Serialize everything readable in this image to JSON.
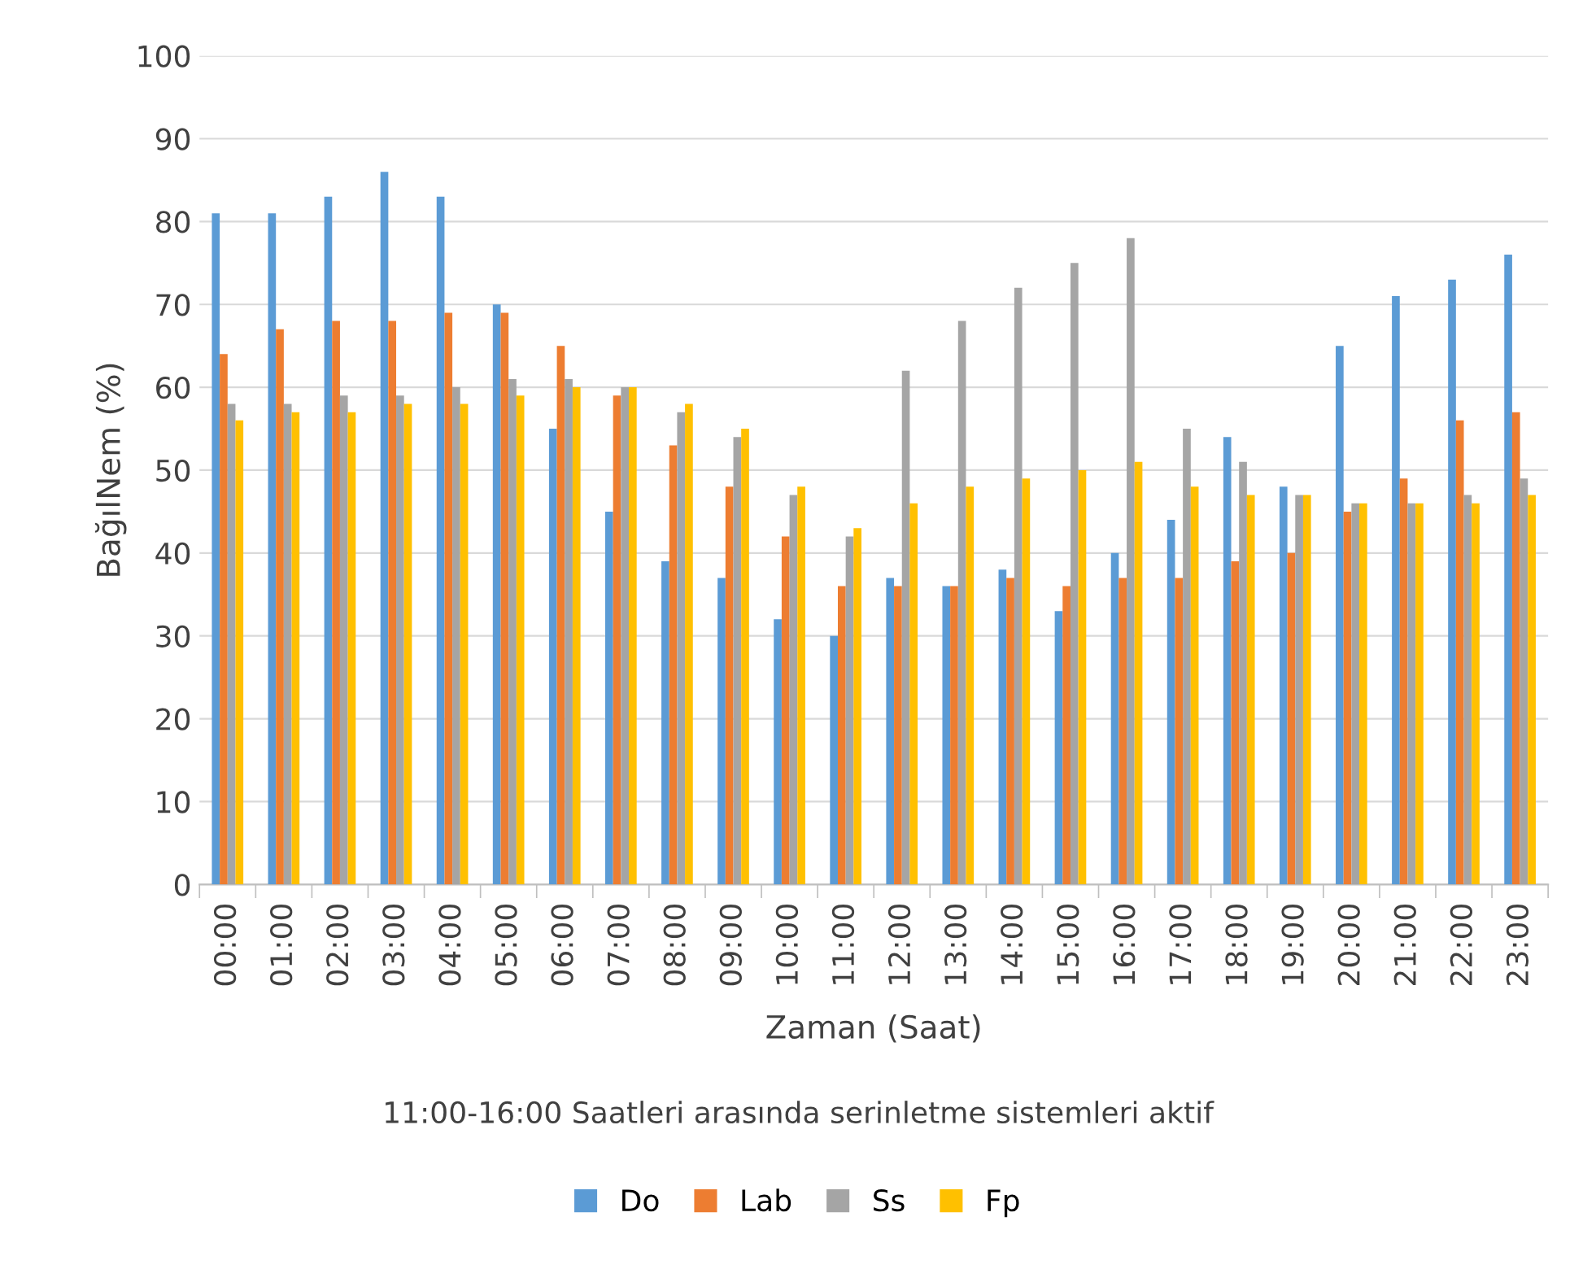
{
  "chart_data": {
    "type": "bar",
    "xlabel": "Zaman (Saat)",
    "ylabel": "BağılNem (%)",
    "annotations": [
      "11:00-16:00 Saatleri arasında serinletme sistemleri aktif"
    ],
    "categories": [
      "00:00",
      "01:00",
      "02:00",
      "03:00",
      "04:00",
      "05:00",
      "06:00",
      "07:00",
      "08:00",
      "09:00",
      "10:00",
      "11:00",
      "12:00",
      "13:00",
      "14:00",
      "15:00",
      "16:00",
      "17:00",
      "18:00",
      "19:00",
      "20:00",
      "21:00",
      "22:00",
      "23:00"
    ],
    "series": [
      {
        "name": "Do",
        "color": "#5b9bd5",
        "values": [
          81,
          81,
          83,
          86,
          83,
          70,
          55,
          45,
          39,
          37,
          32,
          30,
          37,
          36,
          38,
          33,
          40,
          44,
          54,
          48,
          65,
          71,
          73,
          76
        ]
      },
      {
        "name": "Lab",
        "color": "#ed7d31",
        "values": [
          64,
          67,
          68,
          68,
          69,
          69,
          65,
          59,
          53,
          48,
          42,
          36,
          36,
          36,
          37,
          36,
          37,
          37,
          39,
          40,
          45,
          49,
          56,
          57
        ]
      },
      {
        "name": "Ss",
        "color": "#a5a5a5",
        "values": [
          58,
          58,
          59,
          59,
          60,
          61,
          61,
          60,
          57,
          54,
          47,
          42,
          62,
          68,
          72,
          75,
          78,
          55,
          51,
          47,
          46,
          46,
          47,
          49
        ]
      },
      {
        "name": "Fp",
        "color": "#ffc000",
        "values": [
          56,
          57,
          57,
          58,
          58,
          59,
          60,
          60,
          58,
          55,
          48,
          43,
          46,
          48,
          49,
          50,
          51,
          48,
          47,
          47,
          46,
          46,
          46,
          47
        ]
      }
    ],
    "ylim": [
      0,
      100
    ],
    "yticks": [
      0,
      10,
      20,
      30,
      40,
      50,
      60,
      70,
      80,
      90,
      100
    ],
    "grid": "y",
    "legend": "bottom"
  }
}
